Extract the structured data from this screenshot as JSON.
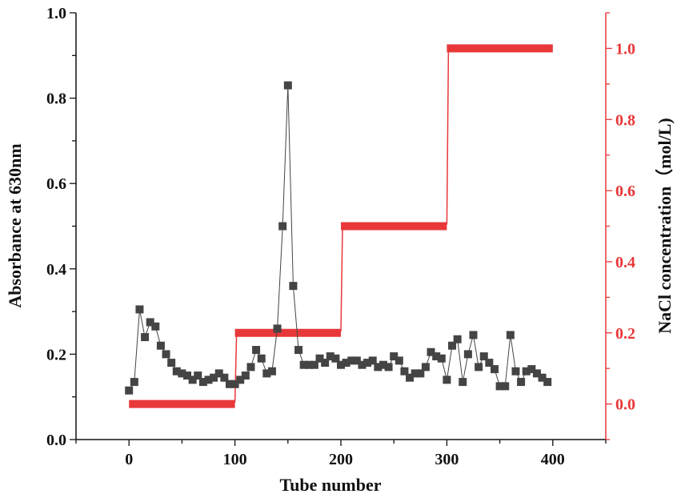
{
  "chart_data": {
    "type": "line",
    "xlabel": "Tube number",
    "ylabel_left": "Absorbance at 630nm",
    "ylabel_right": "NaCl concentration（mol/L)",
    "xlim": [
      -50,
      450
    ],
    "ylim_left": [
      0.0,
      1.0
    ],
    "ylim_right": [
      -0.1,
      1.1
    ],
    "x_ticks": [
      "0",
      "100",
      "200",
      "300",
      "400"
    ],
    "y_left_ticks": [
      "0.0",
      "0.2",
      "0.4",
      "0.6",
      "0.8",
      "1.0"
    ],
    "y_right_ticks": [
      "0.0",
      "0.2",
      "0.4",
      "0.6",
      "0.8",
      "1.0"
    ],
    "colors": {
      "absorbance": "#444444",
      "nacl": "#e8383a",
      "left_axis": "#111111",
      "right_axis": "#e8383a"
    },
    "series": [
      {
        "axis": "left",
        "marker": "square",
        "x": [
          0,
          5,
          10,
          15,
          20,
          25,
          30,
          35,
          40,
          45,
          50,
          55,
          60,
          65,
          70,
          75,
          80,
          85,
          90,
          95,
          100,
          105,
          110,
          115,
          120,
          125,
          130,
          135,
          140,
          145,
          150,
          155,
          160,
          165,
          170,
          175,
          180,
          185,
          190,
          195,
          200,
          205,
          210,
          215,
          220,
          225,
          230,
          235,
          240,
          245,
          250,
          255,
          260,
          265,
          270,
          275,
          280,
          285,
          290,
          295,
          300,
          305,
          310,
          315,
          320,
          325,
          330,
          335,
          340,
          345,
          350,
          355,
          360,
          365,
          370,
          375,
          380,
          385,
          390,
          395
        ],
        "y": [
          0.115,
          0.135,
          0.305,
          0.24,
          0.275,
          0.265,
          0.22,
          0.2,
          0.18,
          0.16,
          0.155,
          0.15,
          0.14,
          0.15,
          0.135,
          0.14,
          0.145,
          0.155,
          0.145,
          0.13,
          0.13,
          0.14,
          0.15,
          0.17,
          0.21,
          0.19,
          0.155,
          0.16,
          0.26,
          0.5,
          0.83,
          0.36,
          0.21,
          0.175,
          0.175,
          0.175,
          0.19,
          0.18,
          0.195,
          0.19,
          0.175,
          0.18,
          0.185,
          0.185,
          0.175,
          0.18,
          0.185,
          0.17,
          0.175,
          0.17,
          0.195,
          0.185,
          0.16,
          0.145,
          0.155,
          0.155,
          0.17,
          0.205,
          0.195,
          0.19,
          0.14,
          0.22,
          0.235,
          0.135,
          0.2,
          0.245,
          0.17,
          0.195,
          0.18,
          0.165,
          0.125,
          0.125,
          0.245,
          0.16,
          0.135,
          0.16,
          0.165,
          0.155,
          0.145,
          0.135
        ]
      },
      {
        "axis": "right",
        "type": "step",
        "segments": [
          {
            "x": [
              0,
              100
            ],
            "y": 0.0
          },
          {
            "x": [
              100,
              200
            ],
            "y": 0.2
          },
          {
            "x": [
              200,
              300
            ],
            "y": 0.5
          },
          {
            "x": [
              300,
              400
            ],
            "y": 1.0
          }
        ]
      }
    ]
  }
}
